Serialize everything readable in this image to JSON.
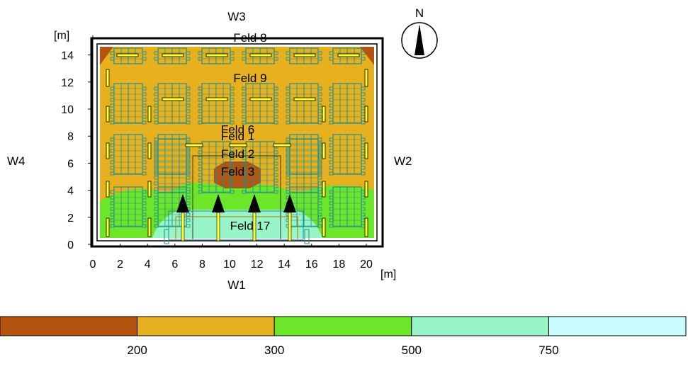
{
  "walls": {
    "north": "W3",
    "east": "W2",
    "south": "W1",
    "west": "W4"
  },
  "compass": {
    "label": "N"
  },
  "axes": {
    "x_unit": "[m]",
    "y_unit": "[m]",
    "x_ticks": [
      0,
      2,
      4,
      6,
      8,
      10,
      12,
      14,
      16,
      18,
      20
    ],
    "y_ticks": [
      0,
      2,
      4,
      6,
      8,
      10,
      12,
      14
    ]
  },
  "fields": [
    {
      "label": "Feld 8",
      "x": 11.5,
      "y": 15.3
    },
    {
      "label": "Feld 9",
      "x": 11.5,
      "y": 12.3
    },
    {
      "label": "Feld 6",
      "x": 10.6,
      "y": 8.5
    },
    {
      "label": "Feld 1",
      "x": 10.6,
      "y": 8.0
    },
    {
      "label": "Feld 2",
      "x": 10.6,
      "y": 6.7
    },
    {
      "label": "Feld 3",
      "x": 10.6,
      "y": 5.4
    },
    {
      "label": "Feld 17",
      "x": 11.5,
      "y": 1.4
    }
  ],
  "legend": {
    "colors": [
      "#b5540f",
      "#e6b01e",
      "#6de62a",
      "#98f5c8",
      "#c8fbfd"
    ],
    "labels": [
      "200",
      "300",
      "500",
      "750"
    ]
  },
  "colors": {
    "zone_200": "#b5540f",
    "zone_300": "#e6b01e",
    "zone_500": "#6de62a",
    "zone_750": "#98f5c8",
    "zone_max": "#c8fbfd",
    "table": "#1f8f8f",
    "luminaire": "#ffff33"
  }
}
